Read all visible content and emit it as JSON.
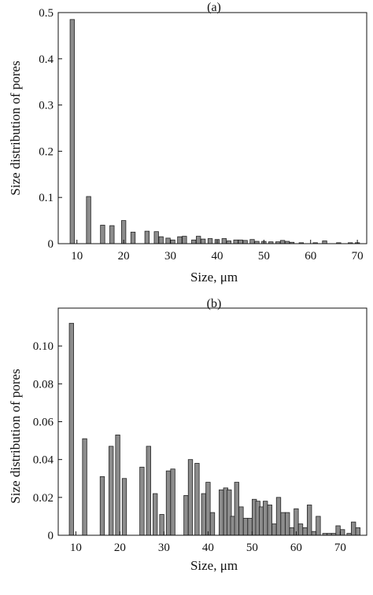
{
  "chart_data": [
    {
      "type": "bar",
      "panel_label": "(a)",
      "xlabel": "Size, μm",
      "ylabel": "Size distribution of pores",
      "xlim": [
        6,
        72
      ],
      "ylim": [
        0,
        0.5
      ],
      "xticks": [
        10,
        20,
        30,
        40,
        50,
        60,
        70
      ],
      "yticks": [
        0,
        0.1,
        0.2,
        0.3,
        0.4,
        0.5
      ],
      "ytick_labels": [
        "0",
        "0.1",
        "0.2",
        "0.3",
        "0.4",
        "0.5"
      ],
      "x": [
        9,
        12.5,
        15.5,
        17.5,
        20,
        22,
        25,
        27,
        28,
        29.5,
        30.5,
        32,
        33,
        35,
        36,
        37,
        38.5,
        40,
        41.5,
        42.5,
        44,
        45,
        46,
        47.5,
        48.5,
        50,
        51.5,
        53,
        54,
        55,
        56,
        58,
        61,
        63,
        66,
        68.5,
        70
      ],
      "values": [
        0.485,
        0.102,
        0.04,
        0.039,
        0.05,
        0.025,
        0.027,
        0.026,
        0.015,
        0.012,
        0.008,
        0.015,
        0.016,
        0.008,
        0.016,
        0.01,
        0.011,
        0.009,
        0.011,
        0.006,
        0.008,
        0.008,
        0.007,
        0.009,
        0.005,
        0.005,
        0.004,
        0.004,
        0.007,
        0.005,
        0.003,
        0.002,
        0.002,
        0.006,
        0.002,
        0.002,
        0.002
      ]
    },
    {
      "type": "bar",
      "panel_label": "(b)",
      "xlabel": "Size, μm",
      "ylabel": "Size distribution of pores",
      "xlim": [
        6,
        76
      ],
      "ylim": [
        0,
        0.12
      ],
      "xticks": [
        10,
        20,
        30,
        40,
        50,
        60,
        70
      ],
      "yticks": [
        0,
        0.02,
        0.04,
        0.06,
        0.08,
        0.1
      ],
      "ytick_labels": [
        "0",
        "0.02",
        "0.04",
        "0.06",
        "0.08",
        "0.10"
      ],
      "x": [
        9,
        12,
        16,
        18,
        19.5,
        21,
        25,
        26.5,
        28,
        29.5,
        31,
        32,
        35,
        36,
        37.5,
        39,
        40,
        41,
        43,
        44,
        44.8,
        45.6,
        46.5,
        47.5,
        48.5,
        49.5,
        50.5,
        51.3,
        52.1,
        53,
        54,
        55,
        56,
        57,
        58,
        59,
        60,
        61,
        62,
        63,
        64,
        65,
        66.5,
        67.5,
        68.5,
        69.5,
        70.5,
        72,
        73,
        74
      ],
      "values": [
        0.112,
        0.051,
        0.031,
        0.047,
        0.053,
        0.03,
        0.036,
        0.047,
        0.022,
        0.011,
        0.034,
        0.035,
        0.021,
        0.04,
        0.038,
        0.022,
        0.028,
        0.012,
        0.024,
        0.025,
        0.024,
        0.01,
        0.028,
        0.015,
        0.009,
        0.009,
        0.019,
        0.018,
        0.015,
        0.018,
        0.016,
        0.006,
        0.02,
        0.012,
        0.012,
        0.004,
        0.014,
        0.006,
        0.004,
        0.016,
        0.002,
        0.01,
        0.001,
        0.001,
        0.001,
        0.005,
        0.003,
        0.001,
        0.007,
        0.004
      ]
    }
  ]
}
